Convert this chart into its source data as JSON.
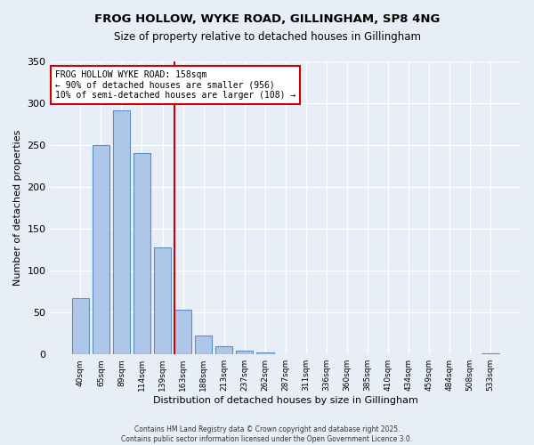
{
  "title_line1": "FROG HOLLOW, WYKE ROAD, GILLINGHAM, SP8 4NG",
  "title_line2": "Size of property relative to detached houses in Gillingham",
  "xlabel": "Distribution of detached houses by size in Gillingham",
  "ylabel": "Number of detached properties",
  "bar_labels": [
    "40sqm",
    "65sqm",
    "89sqm",
    "114sqm",
    "139sqm",
    "163sqm",
    "188sqm",
    "213sqm",
    "237sqm",
    "262sqm",
    "287sqm",
    "311sqm",
    "336sqm",
    "360sqm",
    "385sqm",
    "410sqm",
    "434sqm",
    "459sqm",
    "484sqm",
    "508sqm",
    "533sqm"
  ],
  "bar_values": [
    67,
    250,
    291,
    240,
    128,
    53,
    23,
    10,
    4,
    2,
    0,
    0,
    0,
    0,
    0,
    0,
    0,
    0,
    0,
    0,
    1
  ],
  "bar_color": "#aec6e8",
  "bar_edge_color": "#5b8fbf",
  "vline_index": 5,
  "vline_color": "#cc0000",
  "annotation_line1": "FROG HOLLOW WYKE ROAD: 158sqm",
  "annotation_line2": "← 90% of detached houses are smaller (956)",
  "annotation_line3": "10% of semi-detached houses are larger (108) →",
  "annotation_box_color": "#ffffff",
  "annotation_box_edge": "#cc0000",
  "ylim": [
    0,
    350
  ],
  "yticks": [
    0,
    50,
    100,
    150,
    200,
    250,
    300,
    350
  ],
  "bg_color": "#e8eef7",
  "grid_color": "#ffffff",
  "footer_line1": "Contains HM Land Registry data © Crown copyright and database right 2025.",
  "footer_line2": "Contains public sector information licensed under the Open Government Licence 3.0."
}
